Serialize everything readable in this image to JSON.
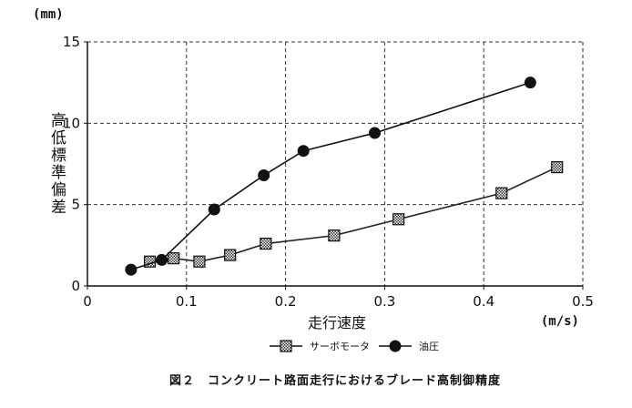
{
  "chart_data": {
    "type": "line",
    "y_unit": "(mm)",
    "x_unit": "(m/s)",
    "xlabel": "走行速度",
    "ylabel": "高低標準偏差",
    "xlim": [
      0,
      0.5
    ],
    "ylim": [
      0,
      15
    ],
    "x_ticks": [
      "0",
      "0.1",
      "0.2",
      "0.3",
      "0.4",
      "0.5"
    ],
    "y_ticks": [
      "0",
      "5",
      "10",
      "15"
    ],
    "grid": true,
    "legend_position": "bottom",
    "caption": "図２　コンクリート路面走行におけるブレード高制御精度",
    "series": [
      {
        "name": "サーボモータ",
        "marker": "square-hatched",
        "color": "#222222",
        "points": [
          {
            "x": 0.063,
            "y": 1.5
          },
          {
            "x": 0.087,
            "y": 1.7
          },
          {
            "x": 0.113,
            "y": 1.5
          },
          {
            "x": 0.144,
            "y": 1.9
          },
          {
            "x": 0.18,
            "y": 2.6
          },
          {
            "x": 0.249,
            "y": 3.1
          },
          {
            "x": 0.314,
            "y": 4.1
          },
          {
            "x": 0.418,
            "y": 5.7
          },
          {
            "x": 0.474,
            "y": 7.3
          }
        ]
      },
      {
        "name": "油圧",
        "marker": "circle-filled",
        "color": "#111111",
        "points": [
          {
            "x": 0.044,
            "y": 1.0
          },
          {
            "x": 0.075,
            "y": 1.6
          },
          {
            "x": 0.128,
            "y": 4.7
          },
          {
            "x": 0.178,
            "y": 6.8
          },
          {
            "x": 0.218,
            "y": 8.3
          },
          {
            "x": 0.29,
            "y": 9.4
          },
          {
            "x": 0.447,
            "y": 12.5
          }
        ]
      }
    ]
  }
}
